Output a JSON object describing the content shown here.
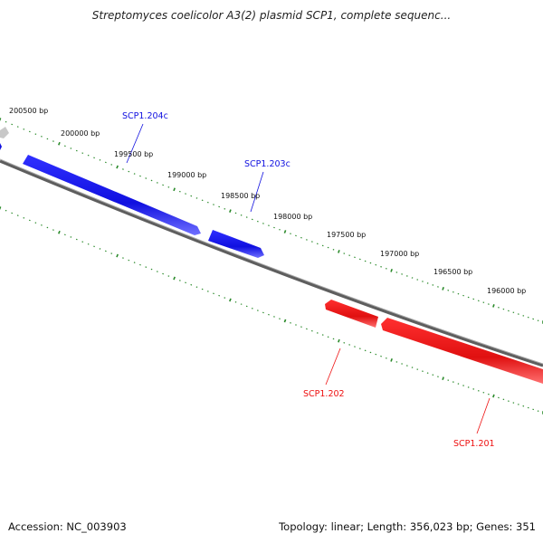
{
  "title": "Streptomyces coelicolor A3(2) plasmid SCP1, complete sequenc...",
  "footer": {
    "accession": "Accession: NC_003903",
    "summary": "Topology: linear; Length: 356,023 bp; Genes: 351"
  },
  "colors": {
    "backbone": "#7a7a7a",
    "tick": "#2a8a2a",
    "forward_gene": "#1010e0",
    "reverse_gene": "#ee1010",
    "partial_gene": "#c8c8c8"
  },
  "position_labels": [
    "200500 bp",
    "200000 bp",
    "199500 bp",
    "199000 bp",
    "198500 bp",
    "198000 bp",
    "197500 bp",
    "197000 bp",
    "196500 bp",
    "196000 bp"
  ],
  "genes": [
    {
      "name": "SCP1.204c",
      "strand": "forward"
    },
    {
      "name": "SCP1.203c",
      "strand": "forward"
    },
    {
      "name": "SCP1.202",
      "strand": "reverse"
    },
    {
      "name": "SCP1.201",
      "strand": "reverse"
    }
  ]
}
